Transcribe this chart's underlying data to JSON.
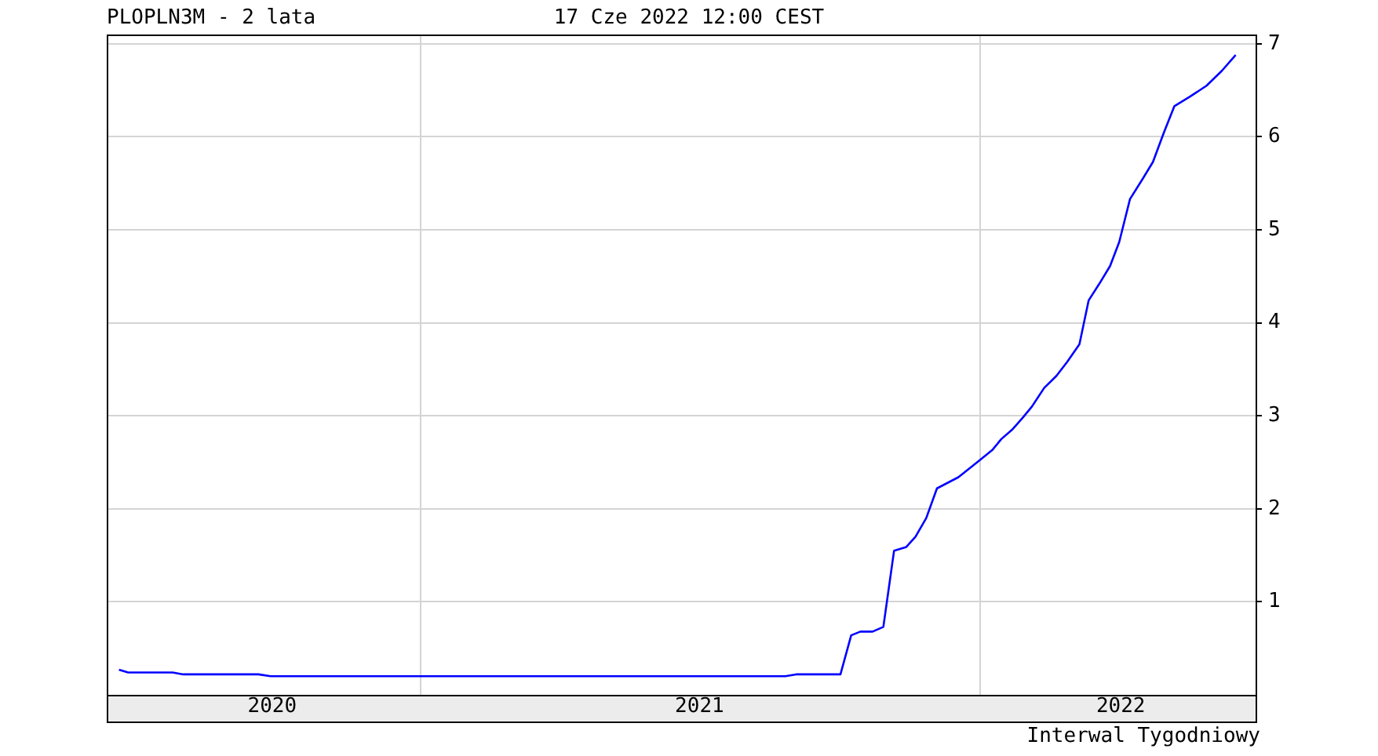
{
  "chart_data": {
    "type": "line",
    "title": "PLOPLN3M - 2 lata",
    "subtitle": "17 Cze 2022 12:00 CEST",
    "annotations": [
      "Interwal Tygodniowy"
    ],
    "x": [
      "2020-06-18",
      "2020-06-24",
      "2020-07-23",
      "2020-07-30",
      "2020-09-17",
      "2020-09-25",
      "2021-08-27",
      "2021-09-03",
      "2021-10-02",
      "2021-10-09",
      "2021-10-15",
      "2021-10-23",
      "2021-10-30",
      "2021-11-06",
      "2021-11-14",
      "2021-11-20",
      "2021-11-27",
      "2021-12-04",
      "2021-12-18",
      "2021-12-31",
      "2022-01-09",
      "2022-01-15",
      "2022-01-22",
      "2022-01-29",
      "2022-02-04",
      "2022-02-12",
      "2022-02-20",
      "2022-02-27",
      "2022-03-07",
      "2022-03-13",
      "2022-03-20",
      "2022-03-27",
      "2022-04-02",
      "2022-04-09",
      "2022-04-17",
      "2022-04-24",
      "2022-05-01",
      "2022-05-08",
      "2022-05-18",
      "2022-05-29",
      "2022-06-08",
      "2022-06-17"
    ],
    "series": [
      {
        "color": "#0000ff",
        "values": [
          0.27,
          0.24,
          0.24,
          0.22,
          0.22,
          0.2,
          0.2,
          0.22,
          0.22,
          0.64,
          0.68,
          0.68,
          0.73,
          1.55,
          1.59,
          1.7,
          1.9,
          2.22,
          2.34,
          2.51,
          2.63,
          2.75,
          2.85,
          2.98,
          3.1,
          3.3,
          3.43,
          3.58,
          3.77,
          4.24,
          4.42,
          4.61,
          4.87,
          5.33,
          5.54,
          5.73,
          6.04,
          6.33,
          6.43,
          6.55,
          6.71,
          6.88
        ]
      }
    ],
    "xlim": [
      "2020-06-10",
      "2022-06-30"
    ],
    "xticks": [
      {
        "value": "2020-09-26",
        "label": "2020"
      },
      {
        "value": "2021-01-01",
        "label": null
      },
      {
        "value": "2021-07-02",
        "label": "2021"
      },
      {
        "value": "2022-01-01",
        "label": null
      },
      {
        "value": "2022-04-03",
        "label": "2022"
      }
    ],
    "ylim": [
      0,
      7.1
    ],
    "yticks": [
      1,
      2,
      3,
      4,
      5,
      6,
      7
    ],
    "grid": true,
    "legend": false,
    "marker": "none",
    "line_style": "solid"
  }
}
